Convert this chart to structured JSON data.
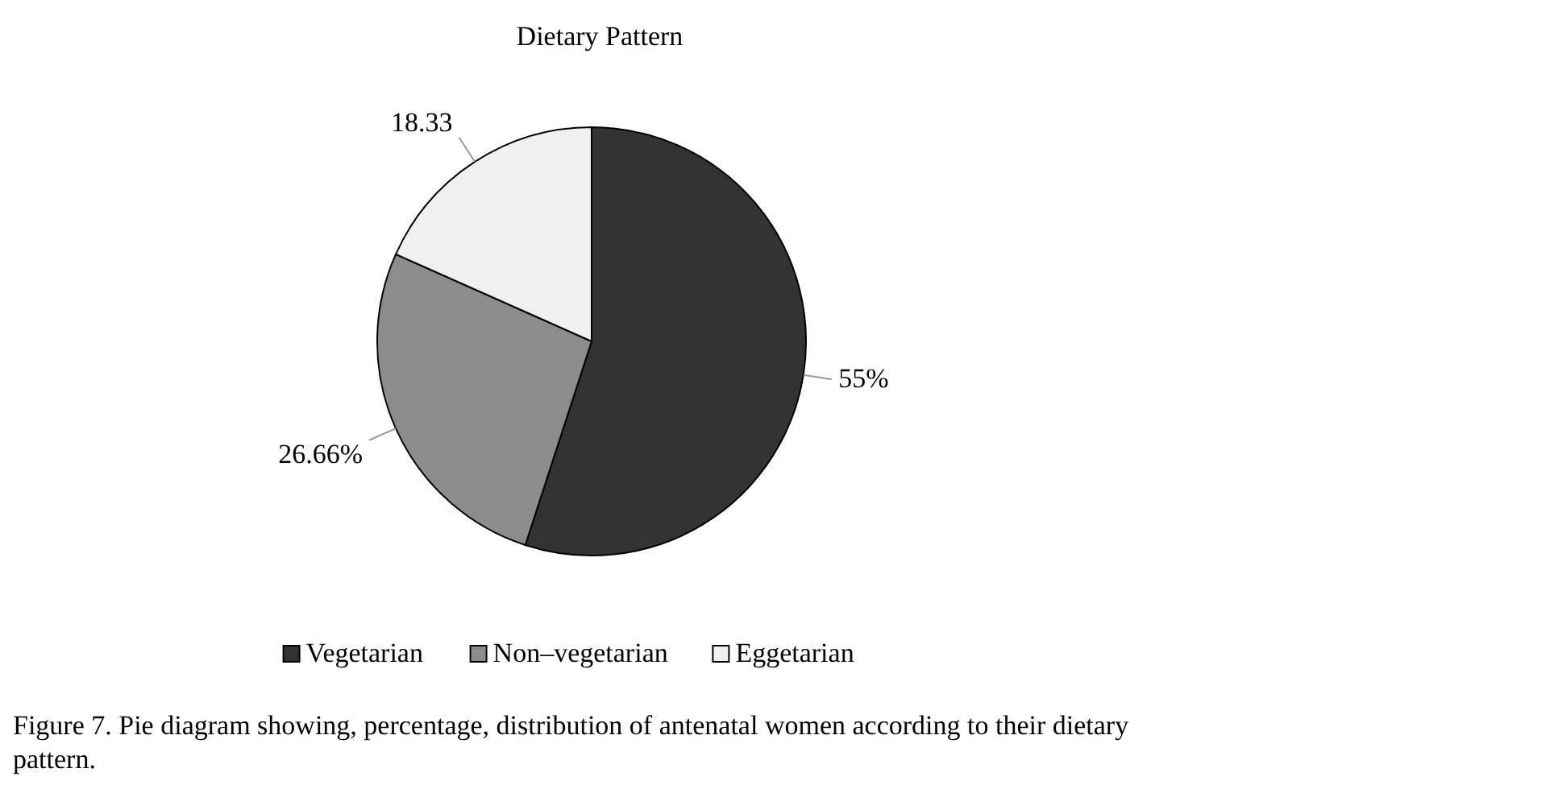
{
  "chart_data": {
    "type": "pie",
    "title": "Dietary Pattern",
    "categories": [
      "Vegetarian",
      "Non–vegetarian",
      "Eggetarian"
    ],
    "values": [
      55,
      26.66,
      18.33
    ],
    "value_labels": [
      "55%",
      "26.66%",
      "18.33"
    ],
    "colors": [
      "#333333",
      "#8c8c8c",
      "#f0f0f0"
    ],
    "legend": "bottom",
    "annotations": [
      "Figure 7. Pie diagram showing, percentage, distribution of antenatal women according to their dietary pattern."
    ]
  }
}
